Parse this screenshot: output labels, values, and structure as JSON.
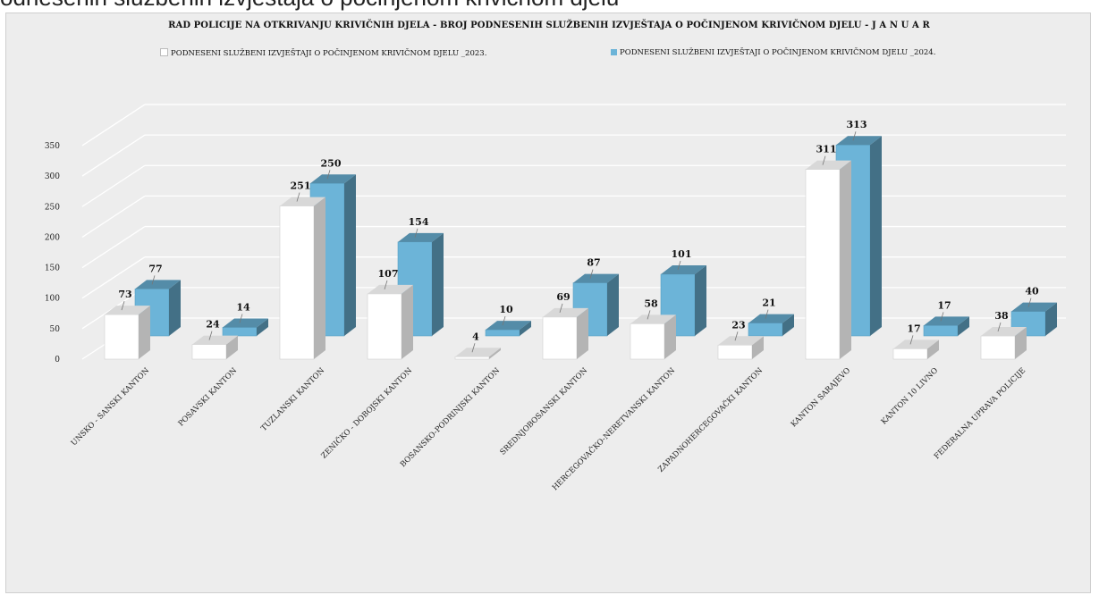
{
  "page_top_text": "odnesenih službenih izvještaja o počinjenom krivičnom djelu",
  "chart_data": {
    "type": "bar",
    "title": "RAD POLICIJE NA OTKRIVANJU KRIVIČNIH DJELA  -  BROJ PODNESENIH SLUŽBENIH IZVJEŠTAJA O POČINJENOM KRIVIČNOM DJELU -  J A N U A R",
    "categories": [
      "UNSKO - SANSKI KANTON",
      "POSAVSKI KANTON",
      "TUZLANSKI KANTON",
      "ZENIČKO - DOBOJSKI KANTON",
      "BOSANSKO-PODRINJSKI KANTON",
      "SREDNJOBOSANSKI KANTON",
      "HERCEGOVAČKO-NERETVANSKI KANTON",
      "ZAPADNOHERCEGOVAČKI KANTON",
      "KANTON SARAJEVO",
      "KANTON 10 LIVNO",
      "FEDERALNA UPRAVA POLICIJE"
    ],
    "series": [
      {
        "name": "PODNESENI SLUŽBENI IZVJEŠTAJI O POČINJENOM KRIVIČNOM DJELU _2023.",
        "color": "#ffffff",
        "values": [
          73,
          24,
          251,
          107,
          4,
          69,
          58,
          23,
          311,
          17,
          38
        ]
      },
      {
        "name": "PODNESENI SLUŽBENI IZVJEŠTAJI O POČINJENOM KRIVIČNOM DJELU _2024.",
        "color": "#6cb4d8",
        "values": [
          77,
          14,
          250,
          154,
          10,
          87,
          101,
          21,
          313,
          17,
          40
        ]
      }
    ],
    "yticks": [
      "0",
      "50",
      "100",
      "150",
      "200",
      "250",
      "300",
      "350"
    ],
    "ylim": [
      0,
      350
    ],
    "grid": true,
    "legend_position": "top",
    "view": "3d-clustered-column"
  }
}
